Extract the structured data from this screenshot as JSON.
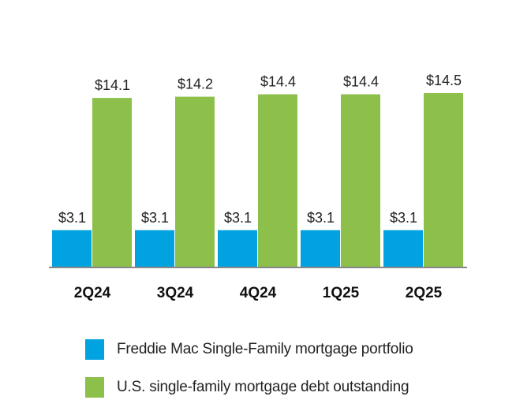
{
  "chart_data": {
    "type": "bar",
    "categories": [
      "2Q24",
      "3Q24",
      "4Q24",
      "1Q25",
      "2Q25"
    ],
    "series": [
      {
        "name": "Freddie Mac Single-Family mortgage portfolio",
        "color": "#00a3e0",
        "values": [
          3.1,
          3.1,
          3.1,
          3.1,
          3.1
        ],
        "labels": [
          "$3.1",
          "$3.1",
          "$3.1",
          "$3.1",
          "$3.1"
        ]
      },
      {
        "name": "U.S. single-family mortgage debt outstanding",
        "color": "#8cc04b",
        "values": [
          14.1,
          14.2,
          14.4,
          14.4,
          14.5
        ],
        "labels": [
          "$14.1",
          "$14.2",
          "$14.4",
          "$14.4",
          "$14.5"
        ]
      }
    ],
    "ylim": [
      0,
      14.5
    ],
    "grid": false,
    "legend_position": "bottom"
  }
}
